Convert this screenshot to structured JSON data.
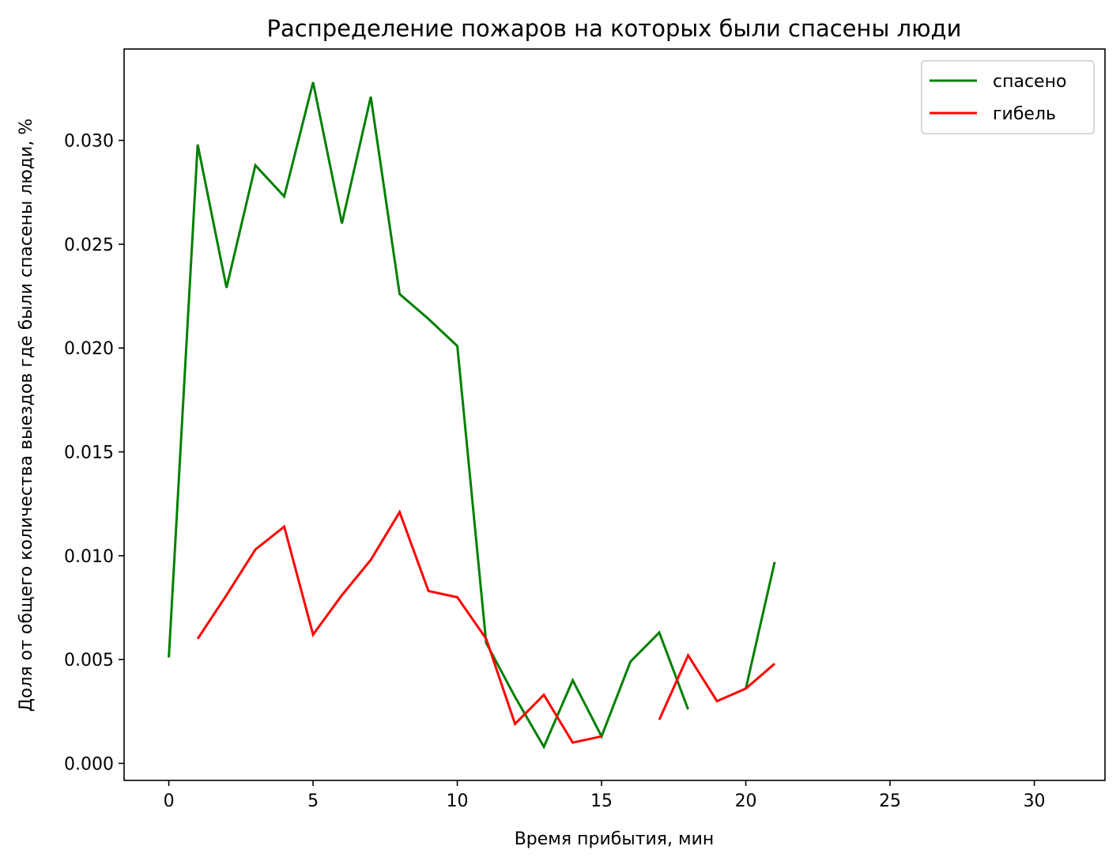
{
  "chart_data": {
    "type": "line",
    "title": "Распределение пожаров на которых были спасены люди",
    "xlabel": "Время прибытия, мин",
    "ylabel": "Доля от общего количества выездов где были спасены люди, %",
    "xlim": [
      -1.55,
      32.45
    ],
    "ylim": [
      -0.00082,
      0.0344
    ],
    "x_ticks": [
      0,
      5,
      10,
      15,
      20,
      25,
      30
    ],
    "x_tick_labels": [
      "0",
      "5",
      "10",
      "15",
      "20",
      "25",
      "30"
    ],
    "y_ticks": [
      0.0,
      0.005,
      0.01,
      0.015,
      0.02,
      0.025,
      0.03
    ],
    "y_tick_labels": [
      "0.000",
      "0.005",
      "0.010",
      "0.015",
      "0.020",
      "0.025",
      "0.030"
    ],
    "grid": false,
    "legend_position": "top-right",
    "series": [
      {
        "name": "спасено",
        "color": "#008000",
        "x": [
          0,
          1,
          2,
          3,
          4,
          5,
          6,
          7,
          8,
          9,
          10,
          11,
          12,
          13,
          14,
          15,
          16,
          17,
          18,
          19,
          20,
          21
        ],
        "values": [
          0.0051,
          0.0298,
          0.0229,
          0.0288,
          0.0273,
          0.0328,
          0.026,
          0.0321,
          0.0226,
          0.0214,
          0.0201,
          0.0058,
          0.0032,
          0.0008,
          0.004,
          0.0013,
          0.0049,
          0.0063,
          0.0026,
          null,
          0.0036,
          0.0097
        ]
      },
      {
        "name": "гибель",
        "color": "#ff0000",
        "x": [
          0,
          1,
          2,
          3,
          4,
          5,
          6,
          7,
          8,
          9,
          10,
          11,
          12,
          13,
          14,
          15,
          16,
          17,
          18,
          19,
          20,
          21
        ],
        "values": [
          null,
          0.006,
          0.0081,
          0.0103,
          0.0114,
          0.0062,
          0.0081,
          0.0098,
          0.0121,
          0.0083,
          0.008,
          0.006,
          0.0019,
          0.0033,
          0.001,
          0.0013,
          null,
          0.0021,
          0.0052,
          0.003,
          0.0036,
          0.0048
        ]
      }
    ]
  }
}
